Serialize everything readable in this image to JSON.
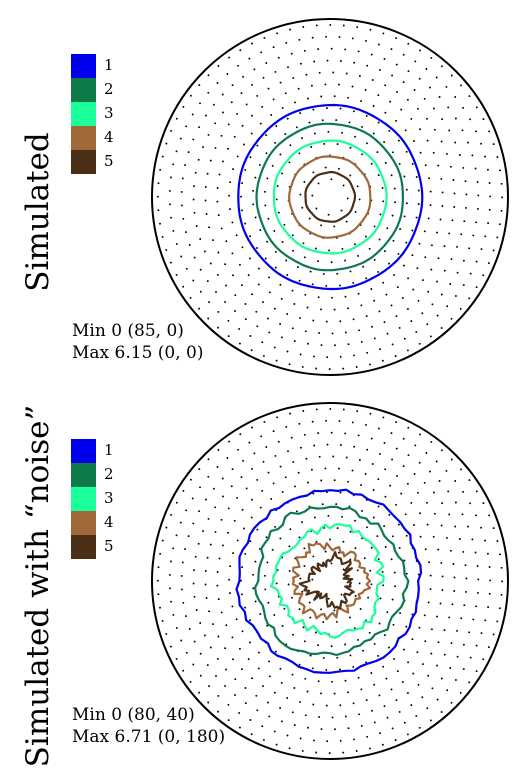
{
  "colors": {
    "levels": [
      "#0000ee",
      "#0e7a4a",
      "#1aff9a",
      "#a0693a",
      "#4a2e16"
    ],
    "outline": "#000000",
    "sample_dots": "#000000"
  },
  "chart_data": [
    {
      "type": "contour",
      "panel_label": "Simulated",
      "legend": [
        "1",
        "2",
        "3",
        "4",
        "5"
      ],
      "contour_levels": [
        1,
        2,
        3,
        4,
        5
      ],
      "radial_max": 90,
      "contour_radii": [
        46.5,
        37,
        28.5,
        20.5,
        12.5
      ],
      "noise": false,
      "stats": {
        "min": "Min 0 (85, 0)",
        "max": "Max 6.15 (0, 0)"
      },
      "grid": false
    },
    {
      "type": "contour",
      "panel_label": "Simulated with “noise”",
      "legend": [
        "1",
        "2",
        "3",
        "4",
        "5"
      ],
      "contour_levels": [
        1,
        2,
        3,
        4,
        5
      ],
      "radial_max": 90,
      "contour_radii": [
        46,
        37.5,
        27,
        18,
        11
      ],
      "noise": true,
      "stats": {
        "min": "Min 0 (80, 40)",
        "max": "Max 6.71 (0, 180)"
      },
      "grid": false
    }
  ]
}
